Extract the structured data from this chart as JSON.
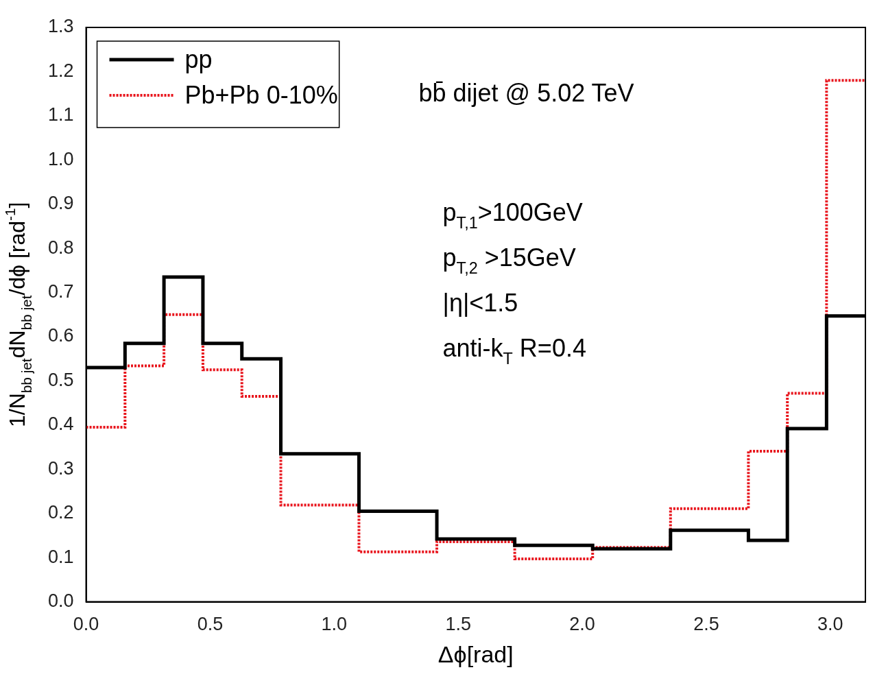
{
  "chart_data": {
    "type": "step",
    "xlabel": "Δϕ[rad]",
    "ylabel": "1/N$_{bb jet}$dN$_{bb jet}$/dϕ [rad$^{-1}$]",
    "x": [
      0,
      0.157,
      0.314,
      0.471,
      0.628,
      0.785,
      1.1,
      1.414,
      1.728,
      2.042,
      2.356,
      2.67,
      2.827,
      2.985,
      3.1416
    ],
    "series": [
      {
        "name": "pp",
        "color": "#000000",
        "line_style": "solid",
        "values": [
          0.53,
          0.585,
          0.735,
          0.585,
          0.55,
          0.335,
          0.205,
          0.142,
          0.128,
          0.12,
          0.162,
          0.139,
          0.392,
          0.647,
          0.647
        ]
      },
      {
        "name": "Pb+Pb 0-10%",
        "color": "#e8141c",
        "line_style": "dotted",
        "values": [
          0.395,
          0.534,
          0.65,
          0.525,
          0.465,
          0.219,
          0.113,
          0.136,
          0.097,
          0.123,
          0.211,
          0.341,
          0.472,
          1.18,
          1.18
        ]
      }
    ],
    "xlim": [
      0,
      3.1416
    ],
    "xticks": [
      {
        "value": 0,
        "label": "0.0"
      },
      0.5,
      {
        "value": 1,
        "label": "1.0"
      },
      1.5,
      {
        "value": 2,
        "label": "2.0"
      },
      2.5,
      {
        "value": 3,
        "label": "3.0"
      }
    ],
    "ylim": [
      0,
      1.3
    ],
    "yticks": [
      {
        "value": 0,
        "label": "0.0"
      },
      0.1,
      0.2,
      0.3,
      0.4,
      0.5,
      0.6,
      0.7,
      0.8,
      0.9,
      {
        "value": 1,
        "label": "1.0"
      },
      1.1,
      1.2,
      1.3
    ],
    "annotations": [
      "bb̄ dijet @ 5.02 TeV",
      "p$_{T,1}$>100GeV",
      "p$_{T,2}$ >15GeV",
      "|η|<1.5",
      "anti-k$_{T}$ R=0.4"
    ],
    "grid": false,
    "legend": "top left"
  }
}
